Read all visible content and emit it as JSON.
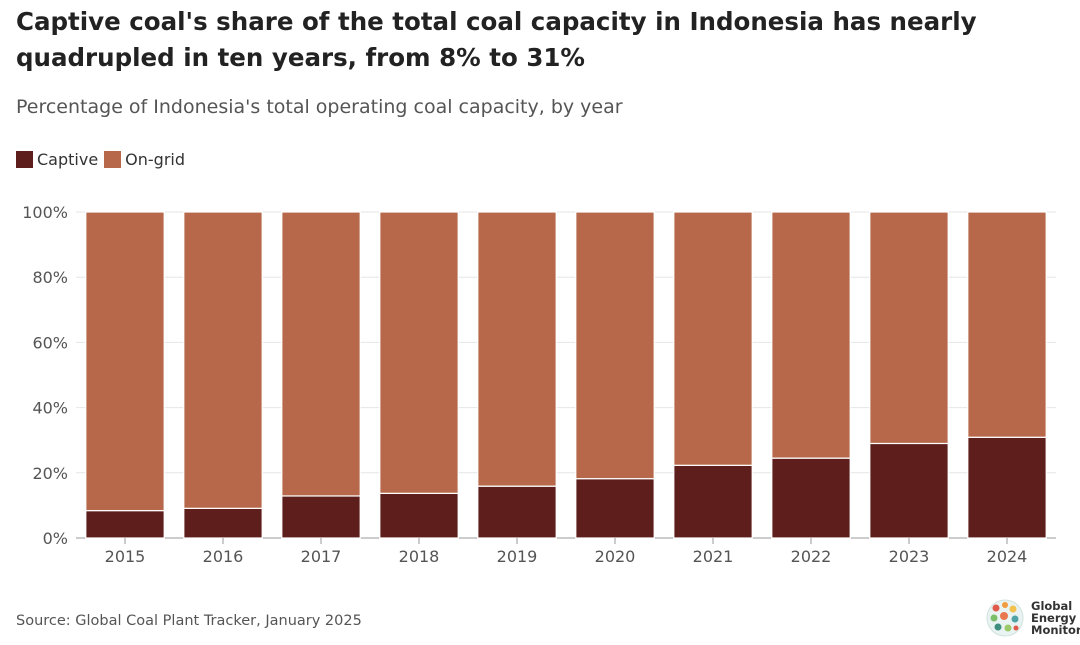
{
  "title": "Captive coal's share of the total coal capacity in Indonesia has nearly quadrupled in ten years, from 8% to 31%",
  "subtitle": "Percentage of Indonesia's total operating coal capacity, by year",
  "source": "Source: Global Coal Plant Tracker, January 2025",
  "logo": {
    "line1": "Global",
    "line2": "Energy",
    "line3": "Monitor"
  },
  "colors": {
    "captive": "#5e1f1c",
    "on_grid": "#b7684a",
    "grid": "#e6e6e6",
    "axis": "#999999"
  },
  "chart_data": {
    "type": "bar",
    "stacked": true,
    "categories": [
      "2015",
      "2016",
      "2017",
      "2018",
      "2019",
      "2020",
      "2021",
      "2022",
      "2023",
      "2024"
    ],
    "series": [
      {
        "name": "Captive",
        "values": [
          8.4,
          9.1,
          12.9,
          13.7,
          15.9,
          18.2,
          22.3,
          24.5,
          29.0,
          30.9
        ]
      },
      {
        "name": "On-grid",
        "values": [
          91.6,
          90.9,
          87.1,
          86.3,
          84.1,
          81.8,
          77.7,
          75.5,
          71.0,
          69.1
        ]
      }
    ],
    "ylim": [
      0,
      100
    ],
    "yticks": [
      0,
      20,
      40,
      60,
      80,
      100
    ],
    "ytick_labels": [
      "0%",
      "20%",
      "40%",
      "60%",
      "80%",
      "100%"
    ],
    "legend_position": "top-left",
    "grid": true
  }
}
